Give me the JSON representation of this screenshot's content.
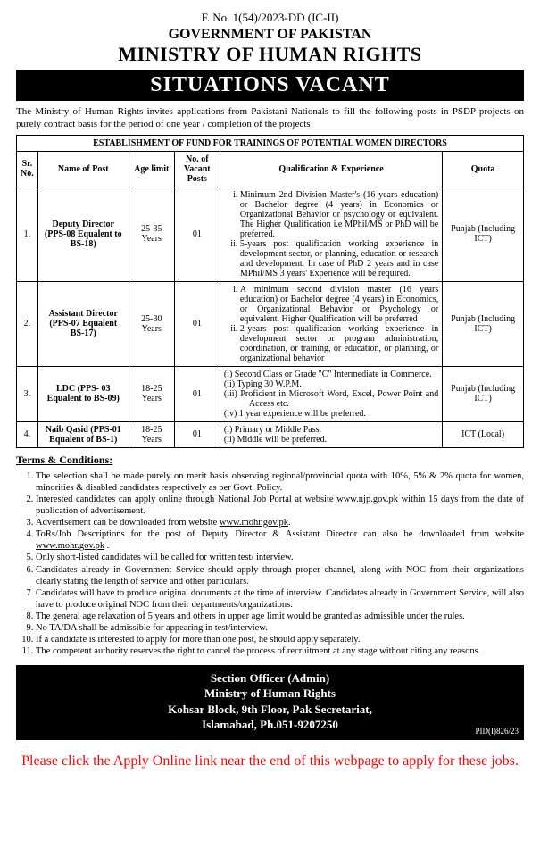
{
  "header": {
    "file_no": "F. No. 1(54)/2023-DD (IC-II)",
    "gov": "GOVERNMENT OF PAKISTAN",
    "ministry": "MINISTRY OF HUMAN RIGHTS",
    "banner": "SITUATIONS VACANT",
    "intro": "The Ministry of Human Rights invites applications from Pakistani Nationals to fill the following posts in PSDP projects on purely contract basis for the period of one year / completion of the projects"
  },
  "table": {
    "title": "ESTABLISHMENT OF FUND FOR TRAININGS OF POTENTIAL WOMEN DIRECTORS",
    "headers": {
      "sr": "Sr. No.",
      "name": "Name of Post",
      "age": "Age limit",
      "vacant": "No. of Vacant Posts",
      "qual": "Qualification & Experience",
      "quota": "Quota"
    },
    "rows": [
      {
        "sr": "1.",
        "name": "Deputy Director (PPS-08 Equalent to BS-18)",
        "age": "25-35 Years",
        "vacant": "01",
        "qual": [
          "Minimum 2nd Division Master's (16 years education) or Bachelor degree (4 years) in Economics or Organizational Behavior or psychology or equivalent. The Higher Qualification i.e MPhil/MS or PhD will be preferred.",
          "5-years post qualification working experience in development sector, or planning, education or research and development. In case of PhD 2 years and in case MPhil/MS 3 years' Experience will be required."
        ],
        "quota": "Punjab (Including ICT)"
      },
      {
        "sr": "2.",
        "name": "Assistant Director (PPS-07 Equalent BS-17)",
        "age": "25-30 Years",
        "vacant": "01",
        "qual": [
          "A minimum second division master (16 years education) or Bachelor degree (4 years) in Economics, or Organizational Behavior or Psychology or equivalent. Higher Qualification will be preferred",
          "2-years post qualification working experience in development sector or program administration, coordination, or training, or education, or planning, or organizational behavior"
        ],
        "quota": "Punjab (Including ICT)"
      },
      {
        "sr": "3.",
        "name": "LDC (PPS- 03 Equalent to BS-09)",
        "age": "18-25 Years",
        "vacant": "01",
        "qual_paren": [
          "(i)    Second Class or Grade \"C\" Intermediate in Commerce.",
          "(ii)   Typing 30 W.P.M.",
          "(iii)  Proficient in Microsoft Word, Excel, Power Point and Access etc.",
          "(iv)  1 year experience will be preferred."
        ],
        "quota": "Punjab (Including ICT)"
      },
      {
        "sr": "4.",
        "name": "Naib Qasid (PPS-01 Equalent of BS-1)",
        "age": "18-25 Years",
        "vacant": "01",
        "qual_paren": [
          "(i)    Primary or Middle Pass.",
          "(ii)   Middle will be preferred."
        ],
        "quota": "ICT (Local)"
      }
    ]
  },
  "terms": {
    "heading": "Terms & Conditions:",
    "items": [
      "The selection shall be made purely on merit basis observing regional/provincial quota with 10%, 5% & 2% quota for women, minorities & disabled candidates respectively as per Govt. Policy.",
      "Interested candidates can apply online through National Job Portal at website <span class=\"u\">www.njp.gov.pk</span> within 15 days from the date of publication of advertisement.",
      "Advertisement can be downloaded from website <span class=\"u\">www.mohr.gov.pk</span>.",
      "ToRs/Job Descriptions for the post of Deputy Director & Assistant Director can also be downloaded from website <span class=\"u\">www.mohr.gov.pk</span> .",
      "Only short-listed candidates will be called for written test/ interview.",
      "Candidates already in Government Service should apply through proper channel, along with NOC from their organizations clearly stating the length of service and other particulars.",
      "Candidates will have to produce original documents at the time of interview. Candidates already in Government Service, will also have to produce original NOC from their departments/organizations.",
      "The general age relaxation of 5 years and others in upper age limit would be granted as admissible under the rules.",
      "No TA/DA shall be admissible for appearing in test/interview.",
      "If a candidate is interested to apply for more than one post, he should apply separately.",
      "The competent authority reserves the right to cancel the process of recruitment at any stage without citing any reasons."
    ]
  },
  "footer": {
    "line1": "Section Officer (Admin)",
    "line2": "Ministry of Human Rights",
    "line3": "Kohsar Block, 9th Floor, Pak Secretariat,",
    "line4": "Islamabad, Ph.051-9207250",
    "pid": "PID(I)826/23"
  },
  "apply_note": "Please click the Apply Online link near the end of this webpage to apply for these jobs."
}
